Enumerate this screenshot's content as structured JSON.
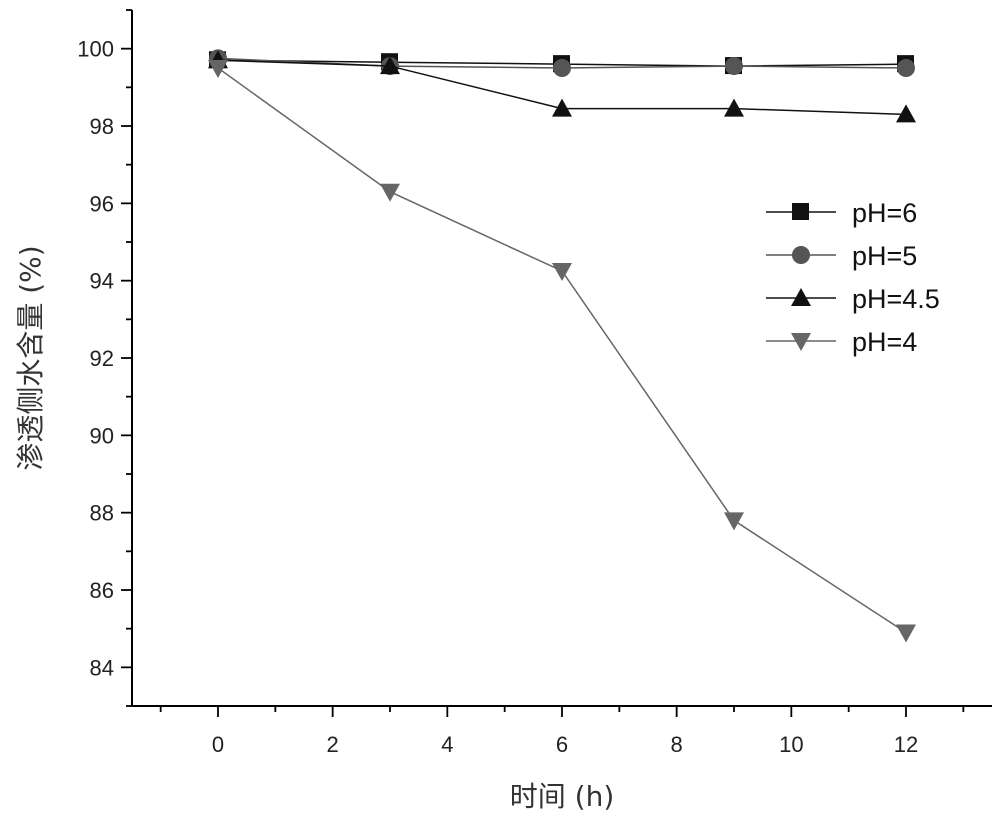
{
  "chart_data": {
    "type": "line",
    "title": "",
    "xlabel": "时间 (h)",
    "ylabel": "渗透侧水含量 (%)",
    "xlim": [
      -1.5,
      13.5
    ],
    "ylim": [
      83,
      101
    ],
    "x_ticks": [
      0,
      2,
      4,
      6,
      8,
      10,
      12
    ],
    "y_ticks": [
      84,
      86,
      88,
      90,
      92,
      94,
      96,
      98,
      100
    ],
    "grid": false,
    "legend_position": "right",
    "x": [
      0,
      3,
      6,
      9,
      12
    ],
    "series": [
      {
        "name": "pH=6",
        "values": [
          99.7,
          99.65,
          99.6,
          99.55,
          99.6
        ],
        "marker": "square",
        "color": "#111111"
      },
      {
        "name": "pH=5",
        "values": [
          99.75,
          99.55,
          99.5,
          99.55,
          99.5
        ],
        "marker": "circle",
        "color": "#555555"
      },
      {
        "name": "pH=4.5",
        "values": [
          99.7,
          99.55,
          98.45,
          98.45,
          98.3
        ],
        "marker": "triangle-up",
        "color": "#111111"
      },
      {
        "name": "pH=4",
        "values": [
          99.5,
          96.3,
          94.25,
          87.8,
          84.9
        ],
        "marker": "triangle-down",
        "color": "#666666"
      }
    ]
  }
}
